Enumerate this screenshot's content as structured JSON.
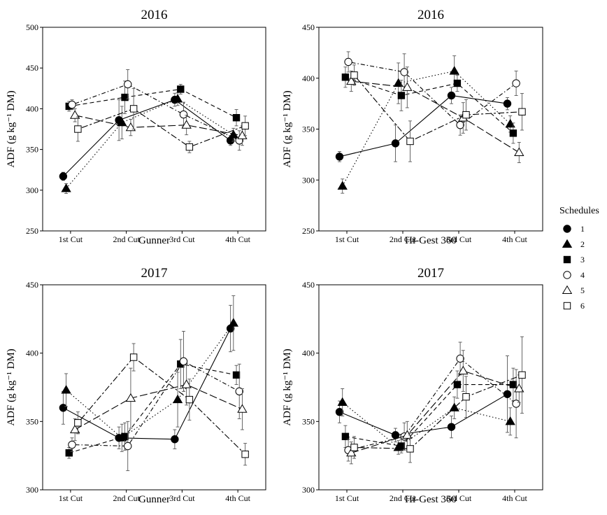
{
  "legend": {
    "title": "Schedules",
    "entries": [
      {
        "label": "1",
        "shape": "circle",
        "filled": true
      },
      {
        "label": "2",
        "shape": "triangle",
        "filled": true
      },
      {
        "label": "3",
        "shape": "square",
        "filled": true
      },
      {
        "label": "4",
        "shape": "circle",
        "filled": false
      },
      {
        "label": "5",
        "shape": "triangle",
        "filled": false
      },
      {
        "label": "6",
        "shape": "square",
        "filled": false
      }
    ]
  },
  "series_style": [
    {
      "name": "1",
      "dash": "solid"
    },
    {
      "name": "2",
      "dash": "dotted"
    },
    {
      "name": "3",
      "dash": "dashed"
    },
    {
      "name": "4",
      "dash": "dotdash"
    },
    {
      "name": "5",
      "dash": "longdash"
    },
    {
      "name": "6",
      "dash": "twodash"
    }
  ],
  "chart_data": [
    {
      "type": "line",
      "title": "2016",
      "xlabel": "Gunner",
      "ylabel": "ADF (g kg⁻¹ DM)",
      "categories": [
        "1st Cut",
        "2nd Cut",
        "3rd Cut",
        "4th Cut"
      ],
      "ylim": [
        250,
        500
      ],
      "yticks": [
        250,
        300,
        350,
        400,
        450,
        500
      ],
      "grid": false,
      "series": [
        {
          "name": "1",
          "values": [
            317,
            386,
            411,
            361
          ],
          "errors": [
            5,
            25,
            8,
            6
          ]
        },
        {
          "name": "2",
          "values": [
            302,
            383,
            412,
            368
          ],
          "errors": [
            6,
            20,
            8,
            8
          ]
        },
        {
          "name": "3",
          "values": [
            403,
            414,
            424,
            389
          ],
          "errors": [
            6,
            20,
            6,
            10
          ]
        },
        {
          "name": "4",
          "values": [
            405,
            430,
            393,
            361
          ],
          "errors": [
            6,
            18,
            15,
            12
          ]
        },
        {
          "name": "5",
          "values": [
            392,
            377,
            380,
            367
          ],
          "errors": [
            8,
            10,
            12,
            12
          ]
        },
        {
          "name": "6",
          "values": [
            375,
            400,
            353,
            379
          ],
          "errors": [
            15,
            25,
            7,
            12
          ]
        }
      ]
    },
    {
      "type": "line",
      "title": "2016",
      "xlabel": "Hi-Gest 360",
      "ylabel": "ADF (g kg⁻¹ DM)",
      "categories": [
        "1st Cut",
        "2nd Cut",
        "3rd Cut",
        "4th Cut"
      ],
      "ylim": [
        250,
        450
      ],
      "yticks": [
        250,
        300,
        350,
        400,
        450
      ],
      "grid": false,
      "series": [
        {
          "name": "1",
          "values": [
            323,
            336,
            383,
            375
          ],
          "errors": [
            5,
            18,
            8,
            6
          ]
        },
        {
          "name": "2",
          "values": [
            294,
            395,
            407,
            355
          ],
          "errors": [
            7,
            20,
            15,
            8
          ]
        },
        {
          "name": "3",
          "values": [
            401,
            383,
            395,
            346
          ],
          "errors": [
            10,
            15,
            8,
            10
          ]
        },
        {
          "name": "4",
          "values": [
            416,
            406,
            354,
            395
          ],
          "errors": [
            10,
            18,
            10,
            12
          ]
        },
        {
          "name": "5",
          "values": [
            397,
            391,
            361,
            327
          ],
          "errors": [
            10,
            20,
            15,
            10
          ]
        },
        {
          "name": "6",
          "values": [
            403,
            338,
            364,
            367
          ],
          "errors": [
            10,
            20,
            15,
            18
          ]
        }
      ]
    },
    {
      "type": "line",
      "title": "2017",
      "xlabel": "Gunner",
      "ylabel": "ADF (g kg⁻¹ DM)",
      "categories": [
        "1st Cut",
        "2nd Cut",
        "3rd Cut",
        "4th Cut"
      ],
      "ylim": [
        300,
        450
      ],
      "yticks": [
        300,
        350,
        400,
        450
      ],
      "grid": false,
      "series": [
        {
          "name": "1",
          "values": [
            360,
            338,
            337,
            418
          ],
          "errors": [
            12,
            8,
            7,
            17
          ]
        },
        {
          "name": "2",
          "values": [
            373,
            338,
            366,
            422
          ],
          "errors": [
            12,
            10,
            20,
            20
          ]
        },
        {
          "name": "3",
          "values": [
            327,
            339,
            392,
            384
          ],
          "errors": [
            4,
            10,
            18,
            7
          ]
        },
        {
          "name": "4",
          "values": [
            333,
            332,
            394,
            372
          ],
          "errors": [
            5,
            18,
            22,
            20
          ]
        },
        {
          "name": "5",
          "values": [
            344,
            367,
            377,
            359
          ],
          "errors": [
            8,
            22,
            15,
            15
          ]
        },
        {
          "name": "6",
          "values": [
            349,
            397,
            366,
            326
          ],
          "errors": [
            8,
            10,
            15,
            8
          ]
        }
      ]
    },
    {
      "type": "line",
      "title": "2017",
      "xlabel": "Hi-Gest 360",
      "ylabel": "ADF (g kg⁻¹ DM)",
      "categories": [
        "1st Cut",
        "2nd Cut",
        "3rd Cut",
        "4th Cut"
      ],
      "ylim": [
        300,
        450
      ],
      "yticks": [
        300,
        350,
        400,
        450
      ],
      "grid": false,
      "series": [
        {
          "name": "1",
          "values": [
            357,
            340,
            346,
            370
          ],
          "errors": [
            8,
            5,
            8,
            28
          ]
        },
        {
          "name": "2",
          "values": [
            364,
            331,
            360,
            350
          ],
          "errors": [
            10,
            5,
            8,
            10
          ]
        },
        {
          "name": "3",
          "values": [
            339,
            332,
            377,
            377
          ],
          "errors": [
            8,
            5,
            10,
            12
          ]
        },
        {
          "name": "4",
          "values": [
            329,
            339,
            396,
            363
          ],
          "errors": [
            8,
            10,
            12,
            25
          ]
        },
        {
          "name": "5",
          "values": [
            327,
            340,
            387,
            374
          ],
          "errors": [
            8,
            10,
            15,
            10
          ]
        },
        {
          "name": "6",
          "values": [
            331,
            330,
            368,
            384
          ],
          "errors": [
            8,
            10,
            15,
            28
          ]
        }
      ]
    }
  ]
}
